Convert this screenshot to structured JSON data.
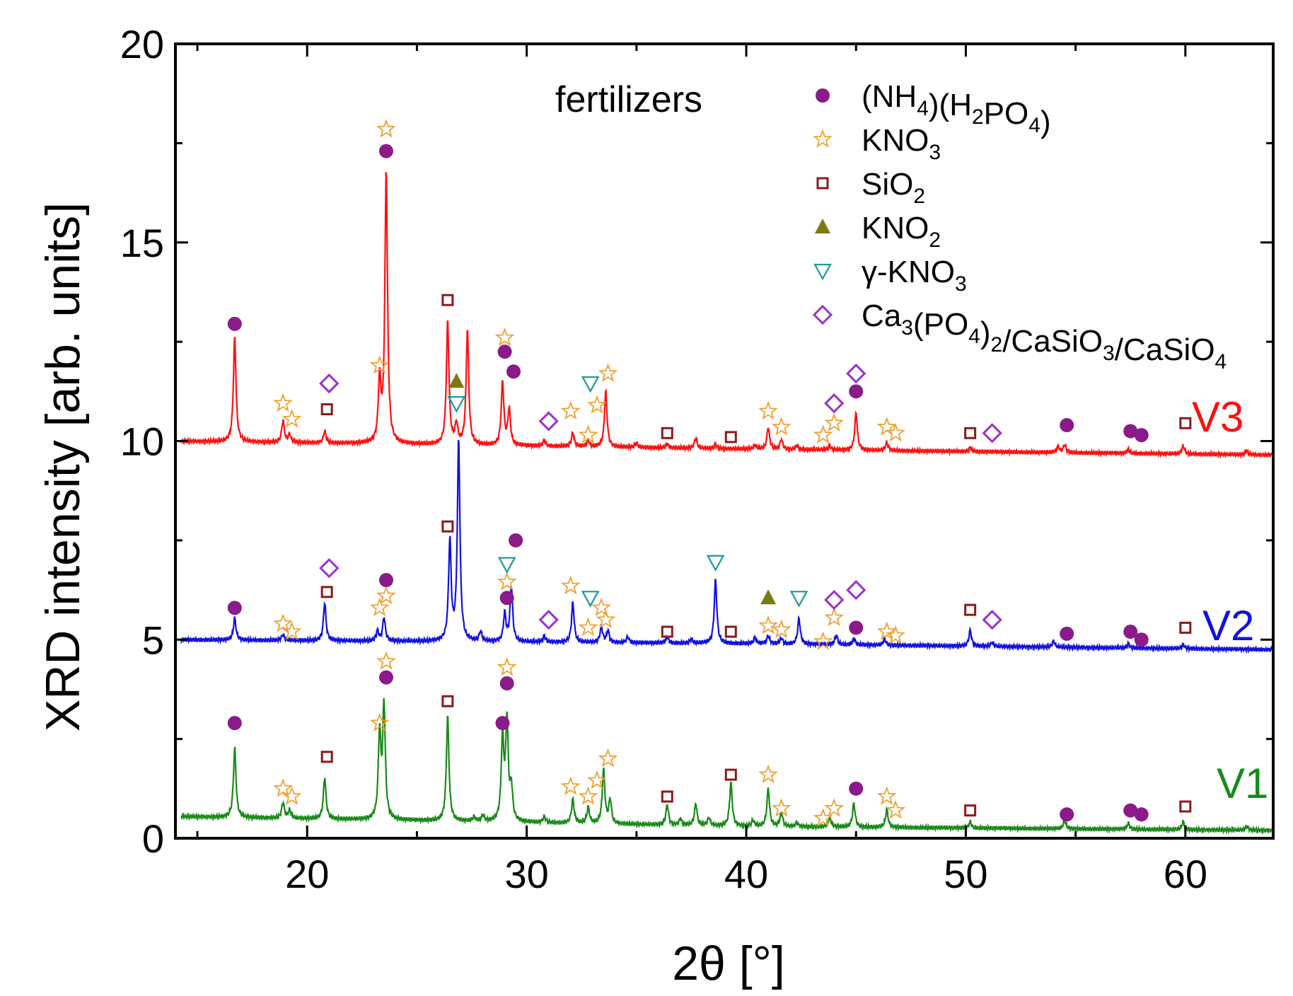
{
  "chart_data": {
    "type": "line",
    "title": "",
    "annotation": "fertilizers",
    "xlabel": "2θ [°]",
    "ylabel": "XRD intensity [arb. units]",
    "xlim": [
      14,
      64
    ],
    "ylim": [
      0,
      20
    ],
    "x_ticks": [
      20,
      30,
      40,
      50,
      60
    ],
    "y_ticks": [
      0,
      5,
      10,
      15,
      20
    ],
    "grid": false,
    "legend_position": "top-right",
    "colors": {
      "V1": "#1a8a1a",
      "V2": "#1010e0",
      "V3": "#ff1010",
      "nh4h2po4": "#8b1a8b",
      "kno3": "#f0a030",
      "sio2": "#8b1a1a",
      "kno2": "#7a7a10",
      "gkno3": "#1a9a9a",
      "caphos": "#9932cc"
    },
    "legend": [
      {
        "key": "nh4h2po4",
        "marker": "circle",
        "label": "(NH4)(H2PO4)"
      },
      {
        "key": "kno3",
        "marker": "star",
        "label": "KNO3"
      },
      {
        "key": "sio2",
        "marker": "square",
        "label": "SiO2"
      },
      {
        "key": "kno2",
        "marker": "triangle-up",
        "label": "KNO2"
      },
      {
        "key": "gkno3",
        "marker": "triangle-down",
        "label": "γ-KNO3"
      },
      {
        "key": "caphos",
        "marker": "diamond",
        "label": "Ca3(PO4)2/CaSiO3/CaSiO4"
      }
    ],
    "series": [
      {
        "name": "V1",
        "baseline": [
          [
            14,
            0.55
          ],
          [
            40,
            0.3
          ],
          [
            64,
            0.2
          ]
        ],
        "peaks": [
          [
            16.7,
            1.75
          ],
          [
            18.9,
            0.4
          ],
          [
            19.2,
            0.2
          ],
          [
            20.8,
            1.05
          ],
          [
            23.3,
            2.15
          ],
          [
            23.5,
            2.85
          ],
          [
            26.4,
            2.65
          ],
          [
            27.6,
            0.1
          ],
          [
            28.0,
            0.15
          ],
          [
            28.9,
            2.1
          ],
          [
            29.1,
            2.5
          ],
          [
            29.3,
            0.8
          ],
          [
            30.8,
            0.15
          ],
          [
            32.1,
            0.6
          ],
          [
            32.8,
            0.4
          ],
          [
            33.5,
            1.35
          ],
          [
            33.8,
            0.6
          ],
          [
            36.4,
            0.5
          ],
          [
            37.0,
            0.15
          ],
          [
            37.7,
            0.55
          ],
          [
            38.3,
            0.2
          ],
          [
            39.3,
            1.1
          ],
          [
            40.3,
            0.15
          ],
          [
            41.0,
            0.95
          ],
          [
            41.6,
            0.35
          ],
          [
            42.3,
            0.1
          ],
          [
            43.8,
            0.25
          ],
          [
            44.9,
            0.6
          ],
          [
            46.4,
            0.45
          ],
          [
            50.2,
            0.15
          ],
          [
            54.5,
            0.2
          ],
          [
            57.4,
            0.15
          ],
          [
            59.9,
            0.2
          ],
          [
            62.8,
            0.1
          ]
        ],
        "label_value": "V1"
      },
      {
        "name": "V2",
        "baseline": [
          [
            14,
            5.0
          ],
          [
            40,
            4.9
          ],
          [
            64,
            4.75
          ]
        ],
        "peaks": [
          [
            16.7,
            0.55
          ],
          [
            18.9,
            0.15
          ],
          [
            20.8,
            0.95
          ],
          [
            23.2,
            0.25
          ],
          [
            23.5,
            0.6
          ],
          [
            26.5,
            2.5
          ],
          [
            26.9,
            5.05
          ],
          [
            27.9,
            0.25
          ],
          [
            29.0,
            0.7
          ],
          [
            29.3,
            1.4
          ],
          [
            30.8,
            0.15
          ],
          [
            32.1,
            1.0
          ],
          [
            33.4,
            0.4
          ],
          [
            33.7,
            0.3
          ],
          [
            34.6,
            0.15
          ],
          [
            36.4,
            0.15
          ],
          [
            37.5,
            0.1
          ],
          [
            38.6,
            1.6
          ],
          [
            40.4,
            0.15
          ],
          [
            41.0,
            0.2
          ],
          [
            41.6,
            0.15
          ],
          [
            42.4,
            0.65
          ],
          [
            44.1,
            0.25
          ],
          [
            44.9,
            0.15
          ],
          [
            46.3,
            0.15
          ],
          [
            50.2,
            0.4
          ],
          [
            51.2,
            0.1
          ],
          [
            54.0,
            0.15
          ],
          [
            57.4,
            0.1
          ],
          [
            59.9,
            0.1
          ]
        ],
        "label_value": "V2"
      },
      {
        "name": "V3",
        "baseline": [
          [
            14,
            10.0
          ],
          [
            40,
            9.8
          ],
          [
            64,
            9.65
          ]
        ],
        "peaks": [
          [
            16.7,
            2.65
          ],
          [
            18.9,
            0.55
          ],
          [
            19.2,
            0.2
          ],
          [
            20.8,
            0.3
          ],
          [
            23.3,
            1.55
          ],
          [
            23.6,
            6.9
          ],
          [
            26.4,
            3.1
          ],
          [
            26.8,
            0.5
          ],
          [
            27.3,
            2.9
          ],
          [
            28.9,
            1.6
          ],
          [
            29.2,
            0.9
          ],
          [
            30.8,
            0.15
          ],
          [
            32.1,
            0.35
          ],
          [
            32.8,
            0.15
          ],
          [
            33.6,
            1.4
          ],
          [
            35.0,
            0.1
          ],
          [
            36.4,
            0.1
          ],
          [
            37.7,
            0.25
          ],
          [
            38.6,
            0.1
          ],
          [
            40.4,
            0.1
          ],
          [
            41.0,
            0.55
          ],
          [
            41.6,
            0.25
          ],
          [
            42.3,
            0.1
          ],
          [
            43.8,
            0.1
          ],
          [
            45.0,
            0.95
          ],
          [
            46.4,
            0.2
          ],
          [
            50.2,
            0.1
          ],
          [
            54.2,
            0.15
          ],
          [
            54.5,
            0.2
          ],
          [
            57.4,
            0.1
          ],
          [
            59.9,
            0.2
          ],
          [
            62.8,
            0.1
          ]
        ],
        "label_value": "V3"
      }
    ],
    "markers": [
      {
        "series": "V3",
        "key": "nh4h2po4",
        "x": 16.7,
        "y": 12.95
      },
      {
        "series": "V3",
        "key": "kno3",
        "x": 18.9,
        "y": 10.95
      },
      {
        "series": "V3",
        "key": "kno3",
        "x": 19.3,
        "y": 10.55
      },
      {
        "series": "V3",
        "key": "caphos",
        "x": 21.0,
        "y": 11.45
      },
      {
        "series": "V3",
        "key": "sio2",
        "x": 20.9,
        "y": 10.8
      },
      {
        "series": "V3",
        "key": "kno3",
        "x": 23.3,
        "y": 11.9
      },
      {
        "series": "V3",
        "key": "nh4h2po4",
        "x": 23.6,
        "y": 17.3
      },
      {
        "series": "V3",
        "key": "kno3",
        "x": 23.6,
        "y": 17.85
      },
      {
        "series": "V3",
        "key": "sio2",
        "x": 26.4,
        "y": 13.55
      },
      {
        "series": "V3",
        "key": "kno2",
        "x": 26.8,
        "y": 11.5
      },
      {
        "series": "V3",
        "key": "gkno3",
        "x": 26.8,
        "y": 10.95
      },
      {
        "series": "V3",
        "key": "kno3",
        "x": 29.0,
        "y": 12.6
      },
      {
        "series": "V3",
        "key": "nh4h2po4",
        "x": 29.0,
        "y": 12.25
      },
      {
        "series": "V3",
        "key": "nh4h2po4",
        "x": 29.4,
        "y": 11.75
      },
      {
        "series": "V3",
        "key": "caphos",
        "x": 31.0,
        "y": 10.5
      },
      {
        "series": "V3",
        "key": "kno3",
        "x": 32.0,
        "y": 10.75
      },
      {
        "series": "V3",
        "key": "kno3",
        "x": 32.8,
        "y": 10.15
      },
      {
        "series": "V3",
        "key": "gkno3",
        "x": 32.9,
        "y": 11.45
      },
      {
        "series": "V3",
        "key": "kno3",
        "x": 33.2,
        "y": 10.9
      },
      {
        "series": "V3",
        "key": "kno3",
        "x": 33.7,
        "y": 11.7
      },
      {
        "series": "V3",
        "key": "sio2",
        "x": 36.4,
        "y": 10.2
      },
      {
        "series": "V3",
        "key": "sio2",
        "x": 39.3,
        "y": 10.1
      },
      {
        "series": "V3",
        "key": "kno3",
        "x": 41.0,
        "y": 10.75
      },
      {
        "series": "V3",
        "key": "kno3",
        "x": 41.6,
        "y": 10.35
      },
      {
        "series": "V3",
        "key": "kno3",
        "x": 43.5,
        "y": 10.15
      },
      {
        "series": "V3",
        "key": "kno3",
        "x": 44.0,
        "y": 10.45
      },
      {
        "series": "V3",
        "key": "caphos",
        "x": 44.0,
        "y": 10.95
      },
      {
        "series": "V3",
        "key": "caphos",
        "x": 45.0,
        "y": 11.7
      },
      {
        "series": "V3",
        "key": "nh4h2po4",
        "x": 45.0,
        "y": 11.25
      },
      {
        "series": "V3",
        "key": "kno3",
        "x": 46.4,
        "y": 10.35
      },
      {
        "series": "V3",
        "key": "kno3",
        "x": 46.8,
        "y": 10.2
      },
      {
        "series": "V3",
        "key": "sio2",
        "x": 50.2,
        "y": 10.2
      },
      {
        "series": "V3",
        "key": "caphos",
        "x": 51.2,
        "y": 10.2
      },
      {
        "series": "V3",
        "key": "nh4h2po4",
        "x": 54.6,
        "y": 10.4
      },
      {
        "series": "V3",
        "key": "nh4h2po4",
        "x": 57.5,
        "y": 10.25
      },
      {
        "series": "V3",
        "key": "nh4h2po4",
        "x": 58.0,
        "y": 10.15
      },
      {
        "series": "V3",
        "key": "sio2",
        "x": 60.0,
        "y": 10.45
      },
      {
        "series": "V2",
        "key": "nh4h2po4",
        "x": 16.7,
        "y": 5.8
      },
      {
        "series": "V2",
        "key": "kno3",
        "x": 18.9,
        "y": 5.4
      },
      {
        "series": "V2",
        "key": "kno3",
        "x": 19.3,
        "y": 5.2
      },
      {
        "series": "V2",
        "key": "caphos",
        "x": 21.0,
        "y": 6.8
      },
      {
        "series": "V2",
        "key": "sio2",
        "x": 20.9,
        "y": 6.2
      },
      {
        "series": "V2",
        "key": "kno3",
        "x": 23.3,
        "y": 5.8
      },
      {
        "series": "V2",
        "key": "kno3",
        "x": 23.6,
        "y": 6.1
      },
      {
        "series": "V2",
        "key": "nh4h2po4",
        "x": 23.6,
        "y": 6.5
      },
      {
        "series": "V2",
        "key": "sio2",
        "x": 26.4,
        "y": 7.85
      },
      {
        "series": "V2",
        "key": "nh4h2po4",
        "x": 29.1,
        "y": 6.05
      },
      {
        "series": "V2",
        "key": "kno3",
        "x": 29.1,
        "y": 6.45
      },
      {
        "series": "V2",
        "key": "gkno3",
        "x": 29.1,
        "y": 6.9
      },
      {
        "series": "V2",
        "key": "nh4h2po4",
        "x": 29.5,
        "y": 7.5
      },
      {
        "series": "V2",
        "key": "caphos",
        "x": 31.0,
        "y": 5.5
      },
      {
        "series": "V2",
        "key": "kno3",
        "x": 32.0,
        "y": 6.35
      },
      {
        "series": "V2",
        "key": "kno3",
        "x": 32.8,
        "y": 5.3
      },
      {
        "series": "V2",
        "key": "gkno3",
        "x": 32.9,
        "y": 6.05
      },
      {
        "series": "V2",
        "key": "kno3",
        "x": 33.4,
        "y": 5.8
      },
      {
        "series": "V2",
        "key": "kno3",
        "x": 33.6,
        "y": 5.5
      },
      {
        "series": "V2",
        "key": "sio2",
        "x": 36.4,
        "y": 5.2
      },
      {
        "series": "V2",
        "key": "gkno3",
        "x": 38.6,
        "y": 6.95
      },
      {
        "series": "V2",
        "key": "sio2",
        "x": 39.3,
        "y": 5.2
      },
      {
        "series": "V2",
        "key": "kno3",
        "x": 41.0,
        "y": 5.35
      },
      {
        "series": "V2",
        "key": "kno2",
        "x": 41.0,
        "y": 6.05
      },
      {
        "series": "V2",
        "key": "kno3",
        "x": 41.6,
        "y": 5.25
      },
      {
        "series": "V2",
        "key": "gkno3",
        "x": 42.4,
        "y": 6.05
      },
      {
        "series": "V2",
        "key": "kno3",
        "x": 43.5,
        "y": 4.95
      },
      {
        "series": "V2",
        "key": "kno3",
        "x": 44.0,
        "y": 5.55
      },
      {
        "series": "V2",
        "key": "caphos",
        "x": 44.0,
        "y": 6.0
      },
      {
        "series": "V2",
        "key": "caphos",
        "x": 45.0,
        "y": 6.25
      },
      {
        "series": "V2",
        "key": "nh4h2po4",
        "x": 45.0,
        "y": 5.3
      },
      {
        "series": "V2",
        "key": "kno3",
        "x": 46.4,
        "y": 5.2
      },
      {
        "series": "V2",
        "key": "kno3",
        "x": 46.8,
        "y": 5.1
      },
      {
        "series": "V2",
        "key": "sio2",
        "x": 50.2,
        "y": 5.75
      },
      {
        "series": "V2",
        "key": "caphos",
        "x": 51.2,
        "y": 5.5
      },
      {
        "series": "V2",
        "key": "nh4h2po4",
        "x": 54.6,
        "y": 5.15
      },
      {
        "series": "V2",
        "key": "nh4h2po4",
        "x": 57.5,
        "y": 5.2
      },
      {
        "series": "V2",
        "key": "nh4h2po4",
        "x": 58.0,
        "y": 5.0
      },
      {
        "series": "V2",
        "key": "sio2",
        "x": 60.0,
        "y": 5.3
      },
      {
        "series": "V1",
        "key": "nh4h2po4",
        "x": 16.7,
        "y": 2.9
      },
      {
        "series": "V1",
        "key": "kno3",
        "x": 18.9,
        "y": 1.25
      },
      {
        "series": "V1",
        "key": "kno3",
        "x": 19.3,
        "y": 1.05
      },
      {
        "series": "V1",
        "key": "sio2",
        "x": 20.9,
        "y": 2.05
      },
      {
        "series": "V1",
        "key": "kno3",
        "x": 23.3,
        "y": 2.9
      },
      {
        "series": "V1",
        "key": "nh4h2po4",
        "x": 23.6,
        "y": 4.05
      },
      {
        "series": "V1",
        "key": "kno3",
        "x": 23.6,
        "y": 4.45
      },
      {
        "series": "V1",
        "key": "sio2",
        "x": 26.4,
        "y": 3.45
      },
      {
        "series": "V1",
        "key": "nh4h2po4",
        "x": 28.9,
        "y": 2.9
      },
      {
        "series": "V1",
        "key": "nh4h2po4",
        "x": 29.1,
        "y": 3.9
      },
      {
        "series": "V1",
        "key": "kno3",
        "x": 29.1,
        "y": 4.3
      },
      {
        "series": "V1",
        "key": "kno3",
        "x": 32.0,
        "y": 1.3
      },
      {
        "series": "V1",
        "key": "kno3",
        "x": 32.8,
        "y": 1.05
      },
      {
        "series": "V1",
        "key": "kno3",
        "x": 33.2,
        "y": 1.45
      },
      {
        "series": "V1",
        "key": "kno3",
        "x": 33.7,
        "y": 2.0
      },
      {
        "series": "V1",
        "key": "sio2",
        "x": 36.4,
        "y": 1.05
      },
      {
        "series": "V1",
        "key": "sio2",
        "x": 39.3,
        "y": 1.6
      },
      {
        "series": "V1",
        "key": "kno3",
        "x": 41.0,
        "y": 1.6
      },
      {
        "series": "V1",
        "key": "kno3",
        "x": 41.6,
        "y": 0.75
      },
      {
        "series": "V1",
        "key": "kno3",
        "x": 43.5,
        "y": 0.5
      },
      {
        "series": "V1",
        "key": "kno3",
        "x": 44.0,
        "y": 0.75
      },
      {
        "series": "V1",
        "key": "nh4h2po4",
        "x": 45.0,
        "y": 1.25
      },
      {
        "series": "V1",
        "key": "kno3",
        "x": 46.4,
        "y": 1.05
      },
      {
        "series": "V1",
        "key": "kno3",
        "x": 46.8,
        "y": 0.7
      },
      {
        "series": "V1",
        "key": "sio2",
        "x": 50.2,
        "y": 0.7
      },
      {
        "series": "V1",
        "key": "nh4h2po4",
        "x": 54.6,
        "y": 0.6
      },
      {
        "series": "V1",
        "key": "nh4h2po4",
        "x": 57.5,
        "y": 0.7
      },
      {
        "series": "V1",
        "key": "nh4h2po4",
        "x": 58.0,
        "y": 0.6
      },
      {
        "series": "V1",
        "key": "sio2",
        "x": 60.0,
        "y": 0.8
      }
    ]
  }
}
